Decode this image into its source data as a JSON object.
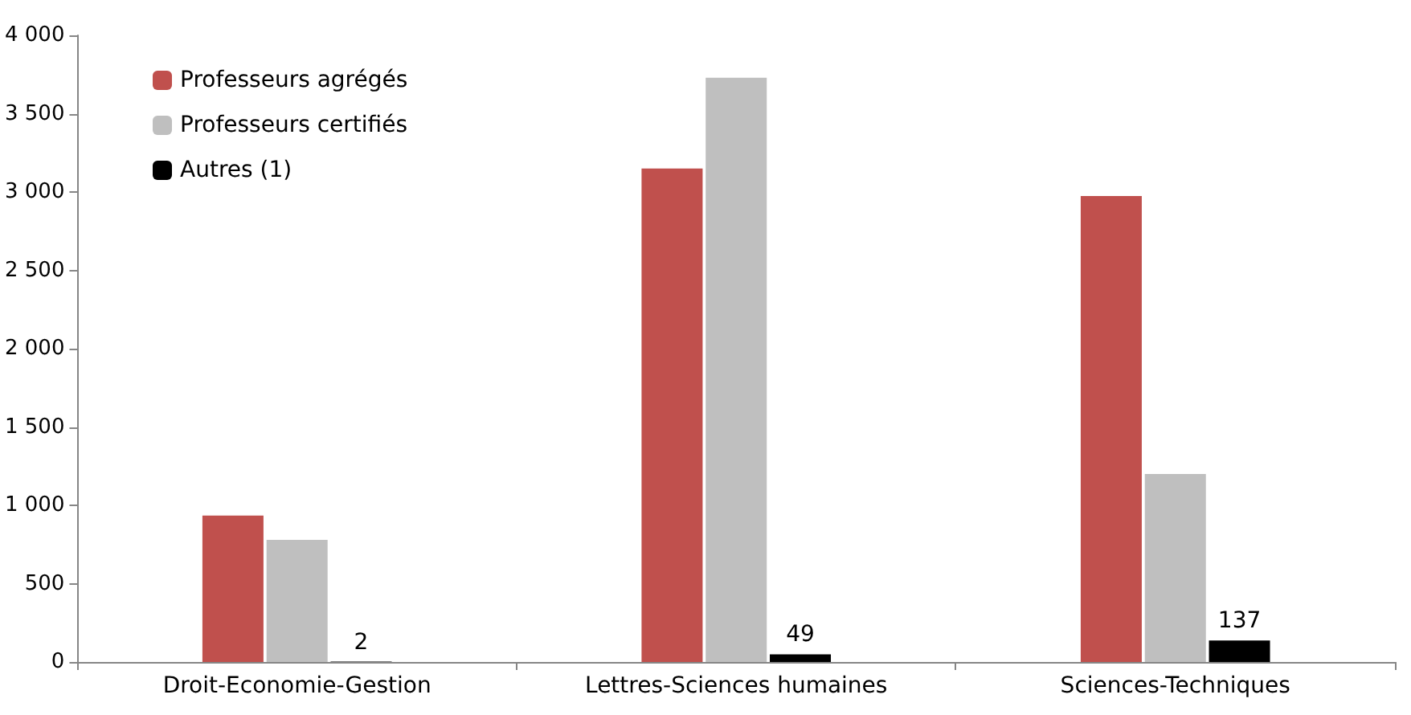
{
  "chart_data": {
    "type": "bar",
    "categories": [
      "Droit-Economie-Gestion",
      "Lettres-Sciences humaines",
      "Sciences-Techniques"
    ],
    "series": [
      {
        "name": "Professeurs agrégés",
        "color": "#c0504d",
        "values": [
          935,
          3150,
          2975
        ]
      },
      {
        "name": "Professeurs certifiés",
        "color": "#bfbfbf",
        "values": [
          780,
          3730,
          1200
        ]
      },
      {
        "name": "Autres (1)",
        "color": "#000000",
        "values": [
          2,
          49,
          137
        ],
        "value_labels": [
          "2",
          "49",
          "137"
        ]
      }
    ],
    "ylim": [
      0,
      4000
    ],
    "yticks": [
      0,
      {
        "value": 500,
        "label": "500"
      },
      {
        "value": 1000,
        "label": "1 000"
      },
      {
        "value": 1500,
        "label": "1 500"
      },
      {
        "value": 2000,
        "label": "2 000"
      },
      {
        "value": 2500,
        "label": "2 500"
      },
      {
        "value": 3000,
        "label": "3 000"
      },
      {
        "value": 3500,
        "label": "3 500"
      },
      {
        "value": 4000,
        "label": "4 000"
      }
    ],
    "grid": false,
    "legend": "top left"
  }
}
